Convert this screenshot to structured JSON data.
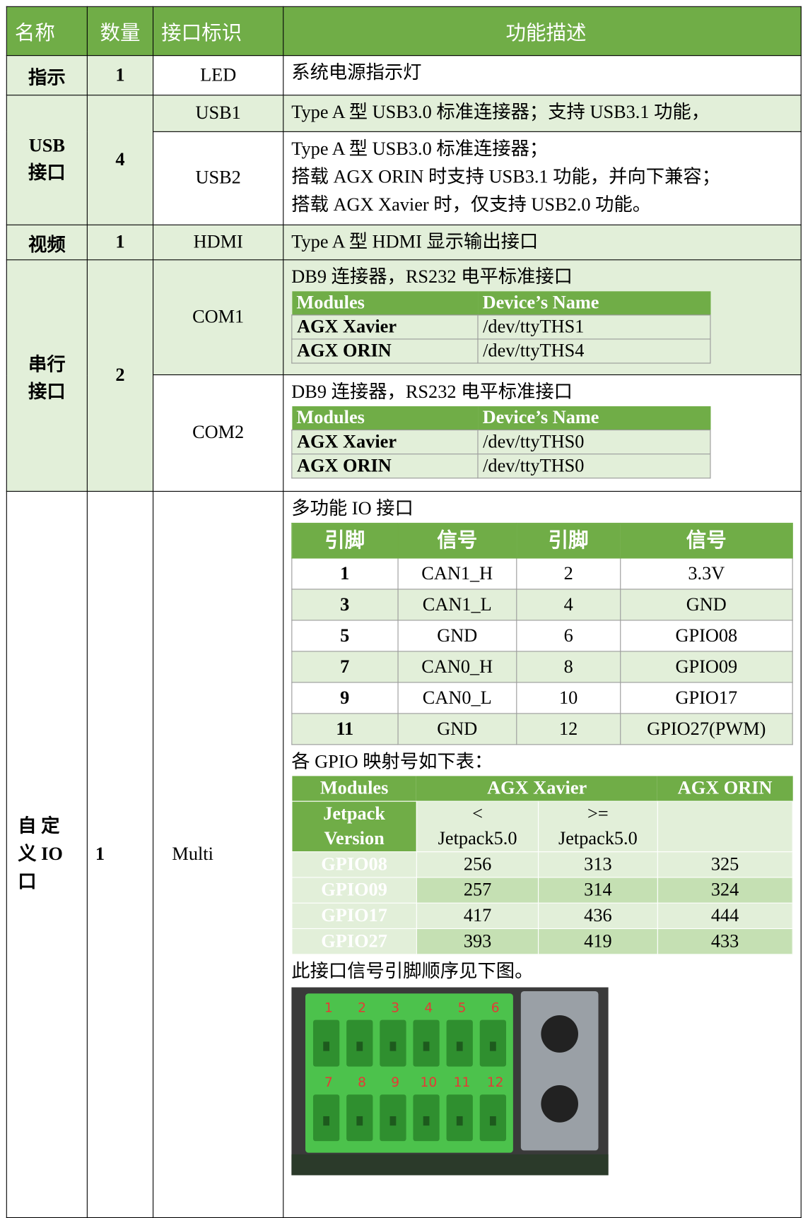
{
  "header": [
    "名称",
    "数量",
    "接口标识",
    "功能描述"
  ],
  "groups": [
    {
      "name": [
        "指示"
      ],
      "qty": "1",
      "items": [
        {
          "id": "LED",
          "text": [
            "系统电源指示灯"
          ]
        }
      ]
    },
    {
      "name": [
        "USB",
        "接口"
      ],
      "qty": "4",
      "items": [
        {
          "id": "USB1",
          "text": [
            "Type A 型 USB3.0 标准连接器；支持 USB3.1 功能，"
          ]
        },
        {
          "id": "USB2",
          "text": [
            "Type A 型 USB3.0 标准连接器；",
            "搭载 AGX ORIN 时支持 USB3.1 功能，并向下兼容；",
            "搭载 AGX Xavier 时，仅支持 USB2.0 功能。"
          ]
        }
      ]
    },
    {
      "name": [
        "视频"
      ],
      "qty": "1",
      "items": [
        {
          "id": "HDMI",
          "text": [
            "Type A 型 HDMI 显示输出接口"
          ]
        }
      ]
    },
    {
      "name": [
        "串行",
        "接口"
      ],
      "qty": "2",
      "items": [
        {
          "id": "COM1",
          "text": [
            "DB9 连接器，RS232 电平标准接口"
          ],
          "table": {
            "header": [
              "Modules",
              "Device’s Name"
            ],
            "rows": [
              [
                "AGX Xavier",
                "/dev/ttyTHS1"
              ],
              [
                "AGX ORIN",
                "/dev/ttyTHS4"
              ]
            ]
          }
        },
        {
          "id": "COM2",
          "text": [
            "DB9 连接器，RS232 电平标准接口"
          ],
          "table": {
            "header": [
              "Modules",
              "Device’s Name"
            ],
            "rows": [
              [
                "AGX Xavier",
                "/dev/ttyTHS0"
              ],
              [
                "AGX ORIN",
                "/dev/ttyTHS0"
              ]
            ]
          }
        }
      ]
    },
    {
      "name": [
        "自 定",
        "义 IO",
        "口"
      ],
      "qty": "1",
      "items": [
        {
          "id": "Multi",
          "text": [
            "多功能 IO 接口"
          ],
          "pin_table": {
            "header": [
              "引脚",
              "信号",
              "引脚",
              "信号"
            ],
            "rows": [
              [
                "1",
                "CAN1_H",
                "2",
                "3.3V"
              ],
              [
                "3",
                "CAN1_L",
                "4",
                "GND"
              ],
              [
                "5",
                "GND",
                "6",
                "GPIO08"
              ],
              [
                "7",
                "CAN0_H",
                "8",
                "GPIO09"
              ],
              [
                "9",
                "CAN0_L",
                "10",
                "GPIO17"
              ],
              [
                "11",
                "GND",
                "12",
                "GPIO27(PWM)"
              ]
            ]
          },
          "gpio_intro": "各 GPIO 映射号如下表：",
          "gpio_table": {
            "header": [
              "Modules",
              "AGX Xavier",
              "AGX ORIN"
            ],
            "version_row": [
              [
                "Jetpack",
                "Version"
              ],
              [
                "<",
                "Jetpack5.0"
              ],
              [
                ">=",
                "Jetpack5.0"
              ]
            ],
            "rows": [
              [
                "GPIO08",
                "256",
                "313",
                "325"
              ],
              [
                "GPIO09",
                "257",
                "314",
                "324"
              ],
              [
                "GPIO17",
                "417",
                "436",
                "444"
              ],
              [
                "GPIO27",
                "393",
                "419",
                "433"
              ]
            ]
          },
          "photo_caption": "此接口信号引脚顺序见下图。",
          "photo_pins": [
            "1",
            "2",
            "3",
            "4",
            "5",
            "6",
            "7",
            "8",
            "9",
            "10",
            "11",
            "12"
          ]
        }
      ]
    }
  ]
}
